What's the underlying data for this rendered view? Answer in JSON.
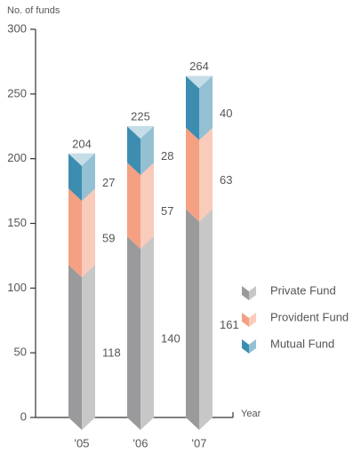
{
  "chart_data": {
    "type": "stacked_bar",
    "y_label": "No. of funds",
    "x_label": "Year",
    "categories": [
      "'05",
      "'06",
      "'07"
    ],
    "series": [
      {
        "name": "Private Fund",
        "color": "#9a9a9c",
        "values": [
          118,
          140,
          161
        ]
      },
      {
        "name": "Provident Fund",
        "color": "#f4a082",
        "values": [
          59,
          57,
          63
        ]
      },
      {
        "name": "Mutual Fund",
        "color": "#3d8db0",
        "values": [
          27,
          28,
          40
        ]
      }
    ],
    "totals": [
      204,
      225,
      264
    ],
    "ylim": [
      0,
      300
    ],
    "yticks": [
      0,
      50,
      100,
      150,
      200,
      250,
      300
    ]
  }
}
